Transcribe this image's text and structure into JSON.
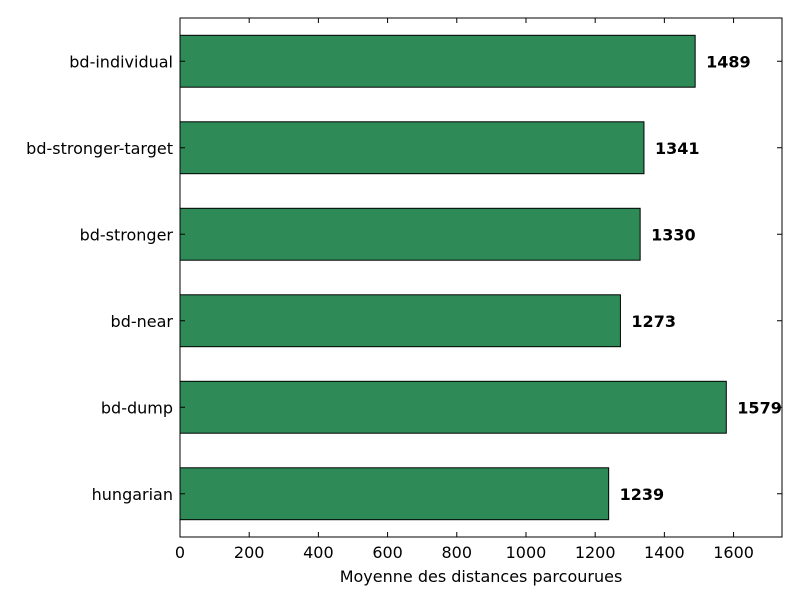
{
  "chart_data": {
    "type": "bar",
    "orientation": "horizontal",
    "categories": [
      "bd-individual",
      "bd-stronger-target",
      "bd-stronger",
      "bd-near",
      "bd-dump",
      "hungarian"
    ],
    "values": [
      1489,
      1341,
      1330,
      1273,
      1579,
      1239
    ],
    "data_labels": [
      "1489",
      "1341",
      "1330",
      "1273",
      "1579",
      "1239"
    ],
    "title": "",
    "xlabel": "Moyenne des distances parcourues",
    "ylabel": "",
    "xlim": [
      0,
      1740
    ],
    "xticks": [
      0,
      200,
      400,
      600,
      800,
      1000,
      1200,
      1400,
      1600
    ],
    "grid": false,
    "legend": "none",
    "bar_color": "#2e8b57",
    "bar_edge_color": "#000000"
  }
}
